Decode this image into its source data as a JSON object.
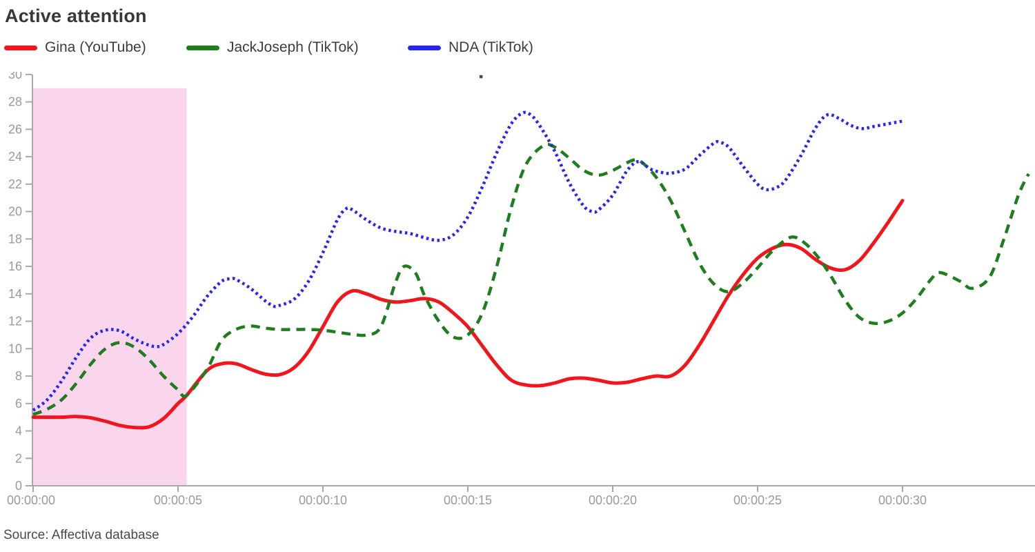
{
  "title": "Active attention",
  "source": "Source: Affectiva database",
  "legend": [
    {
      "label": "Gina (YouTube)",
      "color": "#f2151b",
      "style": "solid"
    },
    {
      "label": "JackJoseph (TikTok)",
      "color": "#1e7d1f",
      "style": "dashed"
    },
    {
      "label": "NDA (TikTok)",
      "color": "#2626f0",
      "style": "dotted"
    }
  ],
  "chart_data": {
    "type": "line",
    "title": "Active attention",
    "xlabel": "",
    "ylabel": "",
    "x_unit": "time (hh:mm:ss)",
    "xlim": [
      0,
      34.6
    ],
    "ylim": [
      0,
      30
    ],
    "grid": false,
    "legend_position": "top-left",
    "axis_color": "#a8a8a8",
    "tick_label_color": "#9a9a9a",
    "x_ticks": [
      {
        "t": 0,
        "label": "00:00:00"
      },
      {
        "t": 5,
        "label": "00:00:05"
      },
      {
        "t": 10,
        "label": "00:00:10"
      },
      {
        "t": 15,
        "label": "00:00:15"
      },
      {
        "t": 20,
        "label": "00:00:20"
      },
      {
        "t": 25,
        "label": "00:00:25"
      },
      {
        "t": 30,
        "label": "00:00:30"
      }
    ],
    "y_ticks": [
      0,
      2,
      4,
      6,
      8,
      10,
      12,
      14,
      16,
      18,
      20,
      22,
      24,
      26,
      28,
      30
    ],
    "highlight_region": {
      "t_start": 0,
      "t_end": 5.3,
      "value_bottom": 0,
      "value_top": 29,
      "color": "#fad6ec"
    },
    "marker_dot": {
      "t": 15.45,
      "value": 29.85,
      "color": "#4a4a4a"
    },
    "series": [
      {
        "name": "Gina (YouTube)",
        "color": "#f2151b",
        "dash": "solid",
        "points": [
          [
            0,
            5.0
          ],
          [
            0.5,
            5.0
          ],
          [
            1,
            5.0
          ],
          [
            1.5,
            5.05
          ],
          [
            2,
            4.95
          ],
          [
            2.5,
            4.7
          ],
          [
            3,
            4.4
          ],
          [
            3.5,
            4.25
          ],
          [
            4,
            4.3
          ],
          [
            4.5,
            4.9
          ],
          [
            5,
            6.0
          ],
          [
            5.3,
            6.6
          ],
          [
            6,
            8.4
          ],
          [
            6.5,
            8.9
          ],
          [
            7,
            8.9
          ],
          [
            7.5,
            8.5
          ],
          [
            8,
            8.15
          ],
          [
            8.5,
            8.1
          ],
          [
            9,
            8.6
          ],
          [
            9.5,
            9.8
          ],
          [
            10,
            11.6
          ],
          [
            10.5,
            13.4
          ],
          [
            11,
            14.2
          ],
          [
            11.5,
            14.0
          ],
          [
            12,
            13.6
          ],
          [
            12.5,
            13.4
          ],
          [
            13,
            13.5
          ],
          [
            13.5,
            13.65
          ],
          [
            14,
            13.4
          ],
          [
            14.5,
            12.6
          ],
          [
            15,
            11.6
          ],
          [
            15.5,
            10.2
          ],
          [
            16,
            8.8
          ],
          [
            16.5,
            7.7
          ],
          [
            17,
            7.35
          ],
          [
            17.5,
            7.3
          ],
          [
            18,
            7.5
          ],
          [
            18.5,
            7.8
          ],
          [
            19,
            7.85
          ],
          [
            19.5,
            7.7
          ],
          [
            20,
            7.5
          ],
          [
            20.5,
            7.55
          ],
          [
            21,
            7.8
          ],
          [
            21.5,
            8.0
          ],
          [
            22,
            8.0
          ],
          [
            22.5,
            8.8
          ],
          [
            23,
            10.3
          ],
          [
            23.5,
            12.1
          ],
          [
            24,
            13.9
          ],
          [
            24.5,
            15.4
          ],
          [
            25,
            16.6
          ],
          [
            25.5,
            17.3
          ],
          [
            26,
            17.6
          ],
          [
            26.5,
            17.3
          ],
          [
            27,
            16.5
          ],
          [
            27.5,
            15.9
          ],
          [
            28,
            15.75
          ],
          [
            28.5,
            16.4
          ],
          [
            29,
            17.7
          ],
          [
            29.5,
            19.2
          ],
          [
            30,
            20.8
          ]
        ]
      },
      {
        "name": "JackJoseph (TikTok)",
        "color": "#1e7d1f",
        "dash": "dashed",
        "points": [
          [
            0,
            5.2
          ],
          [
            0.5,
            5.6
          ],
          [
            1,
            6.3
          ],
          [
            1.5,
            7.5
          ],
          [
            2,
            8.9
          ],
          [
            2.5,
            10.0
          ],
          [
            3,
            10.45
          ],
          [
            3.5,
            10.1
          ],
          [
            4,
            9.2
          ],
          [
            4.5,
            8.0
          ],
          [
            5,
            7.0
          ],
          [
            5.3,
            6.6
          ],
          [
            6,
            8.5
          ],
          [
            6.5,
            10.6
          ],
          [
            7,
            11.4
          ],
          [
            7.5,
            11.65
          ],
          [
            8,
            11.5
          ],
          [
            8.5,
            11.4
          ],
          [
            9,
            11.4
          ],
          [
            9.5,
            11.4
          ],
          [
            10,
            11.35
          ],
          [
            10.5,
            11.2
          ],
          [
            11,
            11.05
          ],
          [
            11.5,
            11.0
          ],
          [
            12,
            11.6
          ],
          [
            12.5,
            14.8
          ],
          [
            12.8,
            16.0
          ],
          [
            13.2,
            15.5
          ],
          [
            13.5,
            13.9
          ],
          [
            14,
            12.0
          ],
          [
            14.5,
            10.85
          ],
          [
            15,
            11.0
          ],
          [
            15.5,
            12.6
          ],
          [
            16,
            16.0
          ],
          [
            16.5,
            20.3
          ],
          [
            17,
            23.4
          ],
          [
            17.6,
            24.8
          ],
          [
            18,
            24.7
          ],
          [
            18.5,
            23.9
          ],
          [
            19,
            23.0
          ],
          [
            19.5,
            22.65
          ],
          [
            20,
            23.0
          ],
          [
            20.7,
            23.75
          ],
          [
            21,
            23.6
          ],
          [
            21.5,
            22.5
          ],
          [
            22,
            20.8
          ],
          [
            22.5,
            18.5
          ],
          [
            23,
            16.2
          ],
          [
            23.5,
            14.7
          ],
          [
            24,
            14.15
          ],
          [
            24.5,
            14.8
          ],
          [
            25,
            15.9
          ],
          [
            25.5,
            17.1
          ],
          [
            26.1,
            18.1
          ],
          [
            26.5,
            17.9
          ],
          [
            27,
            16.9
          ],
          [
            27.5,
            15.4
          ],
          [
            28,
            13.6
          ],
          [
            28.5,
            12.3
          ],
          [
            29,
            11.85
          ],
          [
            29.5,
            12.0
          ],
          [
            30,
            12.6
          ],
          [
            30.5,
            13.7
          ],
          [
            31,
            15.1
          ],
          [
            31.3,
            15.55
          ],
          [
            32,
            14.9
          ],
          [
            32.4,
            14.4
          ],
          [
            33,
            15.2
          ],
          [
            33.5,
            18.0
          ],
          [
            34,
            21.2
          ],
          [
            34.35,
            22.75
          ]
        ]
      },
      {
        "name": "NDA (TikTok)",
        "color": "#2626f0",
        "dash": "dotted",
        "points": [
          [
            0,
            5.5
          ],
          [
            0.5,
            6.3
          ],
          [
            1,
            7.7
          ],
          [
            1.5,
            9.4
          ],
          [
            2,
            10.8
          ],
          [
            2.5,
            11.35
          ],
          [
            3,
            11.3
          ],
          [
            3.5,
            10.7
          ],
          [
            4,
            10.25
          ],
          [
            4.3,
            10.15
          ],
          [
            4.5,
            10.3
          ],
          [
            5,
            11.1
          ],
          [
            5.5,
            12.3
          ],
          [
            6,
            13.8
          ],
          [
            6.5,
            14.9
          ],
          [
            6.8,
            15.1
          ],
          [
            7,
            15.05
          ],
          [
            7.5,
            14.4
          ],
          [
            8,
            13.5
          ],
          [
            8.3,
            13.1
          ],
          [
            8.5,
            13.15
          ],
          [
            9,
            13.6
          ],
          [
            9.5,
            14.9
          ],
          [
            10,
            17.0
          ],
          [
            10.5,
            19.4
          ],
          [
            10.8,
            20.2
          ],
          [
            11,
            20.15
          ],
          [
            11.5,
            19.4
          ],
          [
            12,
            18.8
          ],
          [
            12.5,
            18.55
          ],
          [
            13,
            18.4
          ],
          [
            13.5,
            18.1
          ],
          [
            14,
            17.9
          ],
          [
            14.5,
            18.3
          ],
          [
            15,
            19.6
          ],
          [
            15.5,
            21.8
          ],
          [
            16,
            24.3
          ],
          [
            16.5,
            26.4
          ],
          [
            16.9,
            27.2
          ],
          [
            17.2,
            27.0
          ],
          [
            17.5,
            26.2
          ],
          [
            18,
            24.4
          ],
          [
            18.5,
            22.1
          ],
          [
            19,
            20.4
          ],
          [
            19.3,
            20.0
          ],
          [
            19.5,
            20.1
          ],
          [
            20,
            21.2
          ],
          [
            20.5,
            23.0
          ],
          [
            20.9,
            23.65
          ],
          [
            21.3,
            23.1
          ],
          [
            21.7,
            22.85
          ],
          [
            22,
            22.8
          ],
          [
            22.5,
            23.1
          ],
          [
            23,
            24.1
          ],
          [
            23.5,
            25.0
          ],
          [
            23.7,
            25.05
          ],
          [
            24,
            24.7
          ],
          [
            24.5,
            23.3
          ],
          [
            25,
            22.0
          ],
          [
            25.3,
            21.6
          ],
          [
            25.7,
            21.8
          ],
          [
            26,
            22.4
          ],
          [
            26.5,
            24.1
          ],
          [
            27,
            26.1
          ],
          [
            27.4,
            27.05
          ],
          [
            27.8,
            26.8
          ],
          [
            28.2,
            26.3
          ],
          [
            28.6,
            26.05
          ],
          [
            29,
            26.2
          ],
          [
            29.5,
            26.4
          ],
          [
            30,
            26.6
          ]
        ]
      }
    ]
  }
}
